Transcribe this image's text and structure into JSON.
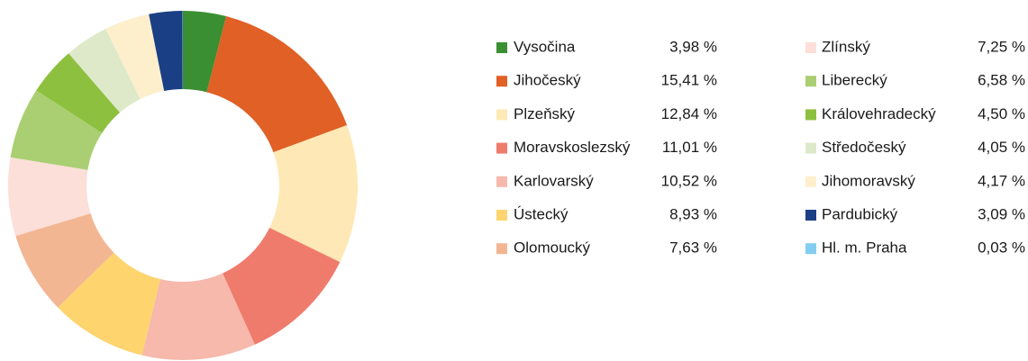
{
  "chart_data": {
    "type": "donut",
    "categories": [
      "Vysočina",
      "Jihočeský",
      "Plzeňský",
      "Moravskoslezský",
      "Karlovarský",
      "Ústecký",
      "Olomoucký",
      "Zlínský",
      "Liberecký",
      "Královehradecký",
      "Středočeský",
      "Jihomoravský",
      "Pardubický",
      "Hl. m. Praha"
    ],
    "values": [
      3.98,
      15.41,
      12.84,
      11.01,
      10.52,
      8.93,
      7.63,
      7.25,
      6.58,
      4.5,
      4.05,
      4.17,
      3.09,
      0.03
    ],
    "value_labels": [
      "3,98 %",
      "15,41 %",
      "12,84 %",
      "11,01 %",
      "10,52 %",
      "8,93 %",
      "7,63 %",
      "7,25 %",
      "6,58 %",
      "4,50 %",
      "4,05 %",
      "4,17 %",
      "3,09 %",
      "0,03 %"
    ],
    "colors": [
      "#3a8f32",
      "#e06026",
      "#fee8b5",
      "#ef7b6c",
      "#f6b9ab",
      "#fed46f",
      "#f3b692",
      "#fbdfd8",
      "#aacf73",
      "#8ec03f",
      "#dde9c8",
      "#fdefcc",
      "#1a3f84",
      "#83cdf0"
    ],
    "legend": "right"
  }
}
